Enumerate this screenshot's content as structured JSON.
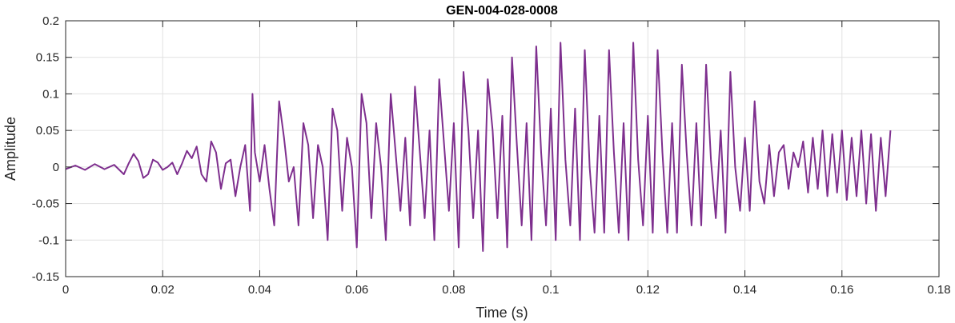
{
  "chart_data": {
    "type": "line",
    "title": "GEN-004-028-0008",
    "xlabel": "Time (s)",
    "ylabel": "Amplitude",
    "xlim": [
      0,
      0.18
    ],
    "ylim": [
      -0.15,
      0.2
    ],
    "xticks": [
      0,
      0.02,
      0.04,
      0.06,
      0.08,
      0.1,
      0.12,
      0.14,
      0.16,
      0.18
    ],
    "yticks": [
      -0.15,
      -0.1,
      -0.05,
      0,
      0.05,
      0.1,
      0.15,
      0.2
    ],
    "xtick_labels": [
      "0",
      "0.02",
      "0.04",
      "0.06",
      "0.08",
      "0.1",
      "0.12",
      "0.14",
      "0.16",
      "0.18"
    ],
    "ytick_labels": [
      "-0.15",
      "-0.1",
      "-0.05",
      "0",
      "0.05",
      "0.1",
      "0.15",
      "0.2"
    ],
    "grid": true,
    "line_color": "#7e2f8e",
    "series": [
      {
        "x": [
          0.0,
          0.002,
          0.004,
          0.006,
          0.008,
          0.01,
          0.012,
          0.013,
          0.014,
          0.015,
          0.016,
          0.017,
          0.018,
          0.019,
          0.02,
          0.021,
          0.022,
          0.023,
          0.024,
          0.025,
          0.026,
          0.027,
          0.028,
          0.029,
          0.03,
          0.031,
          0.032,
          0.033,
          0.034,
          0.035,
          0.036,
          0.037,
          0.038,
          0.0385,
          0.039,
          0.04,
          0.041,
          0.042,
          0.043,
          0.044,
          0.045,
          0.046,
          0.047,
          0.048,
          0.049,
          0.05,
          0.051,
          0.052,
          0.053,
          0.054,
          0.055,
          0.056,
          0.057,
          0.058,
          0.059,
          0.06,
          0.061,
          0.062,
          0.063,
          0.064,
          0.065,
          0.066,
          0.067,
          0.068,
          0.069,
          0.07,
          0.071,
          0.072,
          0.073,
          0.074,
          0.075,
          0.076,
          0.077,
          0.078,
          0.079,
          0.08,
          0.081,
          0.082,
          0.083,
          0.084,
          0.085,
          0.086,
          0.087,
          0.088,
          0.089,
          0.09,
          0.091,
          0.092,
          0.093,
          0.094,
          0.095,
          0.096,
          0.097,
          0.098,
          0.099,
          0.1,
          0.101,
          0.102,
          0.103,
          0.104,
          0.105,
          0.106,
          0.107,
          0.108,
          0.109,
          0.11,
          0.111,
          0.112,
          0.113,
          0.114,
          0.115,
          0.116,
          0.117,
          0.118,
          0.119,
          0.12,
          0.121,
          0.122,
          0.123,
          0.124,
          0.125,
          0.126,
          0.127,
          0.128,
          0.129,
          0.13,
          0.131,
          0.132,
          0.133,
          0.134,
          0.135,
          0.136,
          0.137,
          0.138,
          0.139,
          0.14,
          0.141,
          0.142,
          0.143,
          0.144,
          0.145,
          0.146,
          0.147,
          0.148,
          0.149,
          0.15,
          0.151,
          0.152,
          0.153,
          0.154,
          0.155,
          0.156,
          0.157,
          0.158,
          0.159,
          0.16,
          0.161,
          0.162,
          0.163,
          0.164,
          0.165,
          0.166,
          0.167,
          0.168,
          0.169,
          0.17
        ],
        "y": [
          -0.003,
          0.002,
          -0.004,
          0.004,
          -0.003,
          0.003,
          -0.01,
          0.005,
          0.018,
          0.008,
          -0.015,
          -0.01,
          0.01,
          0.006,
          -0.004,
          0.0,
          0.006,
          -0.01,
          0.005,
          0.022,
          0.012,
          0.028,
          -0.01,
          -0.02,
          0.035,
          0.02,
          -0.03,
          0.005,
          0.01,
          -0.04,
          0.0,
          0.03,
          -0.06,
          0.1,
          0.02,
          -0.02,
          0.03,
          -0.03,
          -0.08,
          0.09,
          0.04,
          -0.02,
          0.0,
          -0.08,
          0.06,
          0.03,
          -0.07,
          0.03,
          0.0,
          -0.1,
          0.08,
          0.05,
          -0.06,
          0.04,
          0.0,
          -0.11,
          0.1,
          0.06,
          -0.07,
          0.06,
          0.0,
          -0.1,
          0.1,
          0.02,
          -0.06,
          0.04,
          -0.08,
          0.11,
          0.02,
          -0.07,
          0.05,
          -0.1,
          0.12,
          0.03,
          -0.06,
          0.06,
          -0.11,
          0.13,
          0.05,
          -0.07,
          0.05,
          -0.115,
          0.12,
          0.05,
          -0.07,
          0.07,
          -0.11,
          0.15,
          0.03,
          -0.08,
          0.06,
          -0.1,
          0.165,
          0.02,
          -0.08,
          0.08,
          -0.1,
          0.17,
          0.01,
          -0.08,
          0.08,
          -0.1,
          0.16,
          0.0,
          -0.09,
          0.07,
          -0.09,
          0.16,
          0.02,
          -0.09,
          0.06,
          -0.1,
          0.17,
          0.01,
          -0.08,
          0.07,
          -0.09,
          0.16,
          0.02,
          -0.09,
          0.06,
          -0.09,
          0.14,
          0.02,
          -0.08,
          0.06,
          -0.08,
          0.14,
          0.01,
          -0.07,
          0.05,
          -0.09,
          0.13,
          0.0,
          -0.06,
          0.04,
          -0.06,
          0.09,
          -0.02,
          -0.05,
          0.03,
          -0.04,
          0.02,
          0.03,
          -0.03,
          0.02,
          0.0,
          0.035,
          -0.035,
          0.04,
          -0.03,
          0.05,
          -0.04,
          0.045,
          -0.035,
          0.05,
          -0.045,
          0.04,
          -0.04,
          0.05,
          -0.05,
          0.045,
          -0.06,
          0.04,
          -0.04,
          0.05
        ]
      }
    ]
  }
}
